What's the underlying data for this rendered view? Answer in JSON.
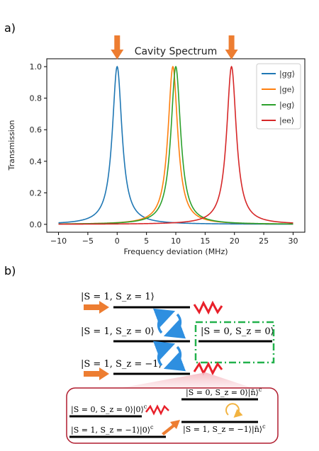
{
  "panel_a": {
    "label": "a)"
  },
  "panel_b": {
    "label": "b)"
  },
  "chart_data": {
    "type": "line",
    "title": "Cavity Spectrum",
    "xlabel": "Frequency deviation (MHz)",
    "ylabel": "Transmission",
    "xlim": [
      -12,
      32
    ],
    "ylim": [
      -0.05,
      1.05
    ],
    "xticks": [
      -10,
      -5,
      0,
      5,
      10,
      15,
      20,
      25,
      30
    ],
    "yticks": [
      0.0,
      0.2,
      0.4,
      0.6,
      0.8,
      1.0
    ],
    "x_range": [
      -10,
      30
    ],
    "grid": false,
    "legend_position": "top-right",
    "series": [
      {
        "name": "|gg⟩",
        "center": 0.0,
        "width": 1.0,
        "peak": 1.0,
        "color": "#1f77b4"
      },
      {
        "name": "|ge⟩",
        "center": 9.5,
        "width": 1.0,
        "peak": 1.0,
        "color": "#ff7f0e"
      },
      {
        "name": "|eg⟩",
        "center": 10.0,
        "width": 1.0,
        "peak": 1.0,
        "color": "#2ca02c"
      },
      {
        "name": "|ee⟩",
        "center": 19.5,
        "width": 1.0,
        "peak": 1.0,
        "color": "#d62728"
      }
    ],
    "marker_arrows_x": [
      0,
      19.5
    ]
  },
  "levels": {
    "triplet_plus": "|S = 1, S_z = 1⟩",
    "triplet_zero": "|S = 1, S_z = 0⟩",
    "singlet": "|S = 0, S_z = 0⟩",
    "triplet_minus": "|S = 1, S_z = −1⟩"
  },
  "inset": {
    "singlet_nbar": "|S = 0, S_z = 0⟩|n̄⟩",
    "singlet_vac": "|S = 0, S_z = 0⟩|0⟩",
    "triplet_minus_vac": "|S = 1, S_z = −1⟩|0⟩",
    "triplet_minus_nbar": "|S = 1, S_z = −1⟩|n̄⟩",
    "superscript": "c"
  },
  "colors": {
    "arrow_orange": "#ed7d31",
    "cycle_blue": "#2e8fe0",
    "dashed_green": "#22b14c",
    "zigzag_red": "#e8202a",
    "inset_border": "#b01c2e",
    "inset_cycle": "#f2b340"
  }
}
